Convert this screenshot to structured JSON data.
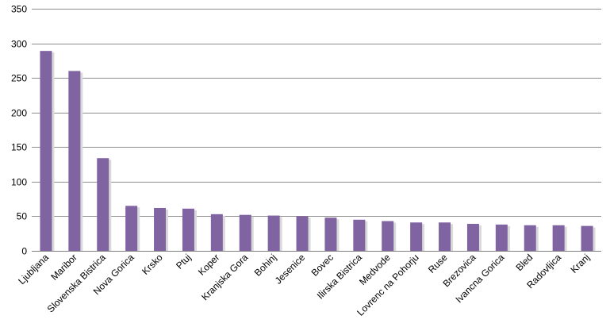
{
  "chart_data": {
    "type": "bar",
    "categories": [
      "Ljubljana",
      "Maribor",
      "Slovenska Bistrica",
      "Nova Gorica",
      "Krsko",
      "Ptuj",
      "Koper",
      "Kranjska Gora",
      "Bohinj",
      "Jesenice",
      "Bovec",
      "Ilirska Bistrica",
      "Medvode",
      "Lovrenc na Pohorju",
      "Ruse",
      "Brezovica",
      "Ivancna Gorica",
      "Bled",
      "Radovljica",
      "Kranj"
    ],
    "values": [
      289,
      260,
      134,
      65,
      62,
      61,
      53,
      52,
      51,
      50,
      48,
      45,
      43,
      41,
      41,
      39,
      38,
      37,
      37,
      36
    ],
    "title": "",
    "xlabel": "",
    "ylabel": "",
    "ylim": [
      0,
      350
    ],
    "yticks": [
      "0",
      "50",
      "100",
      "150",
      "200",
      "250",
      "300",
      "350"
    ],
    "grid": true,
    "legend": "none",
    "bar_color": "#8064a2",
    "bar_shadow_color": "#d9d9d9"
  }
}
